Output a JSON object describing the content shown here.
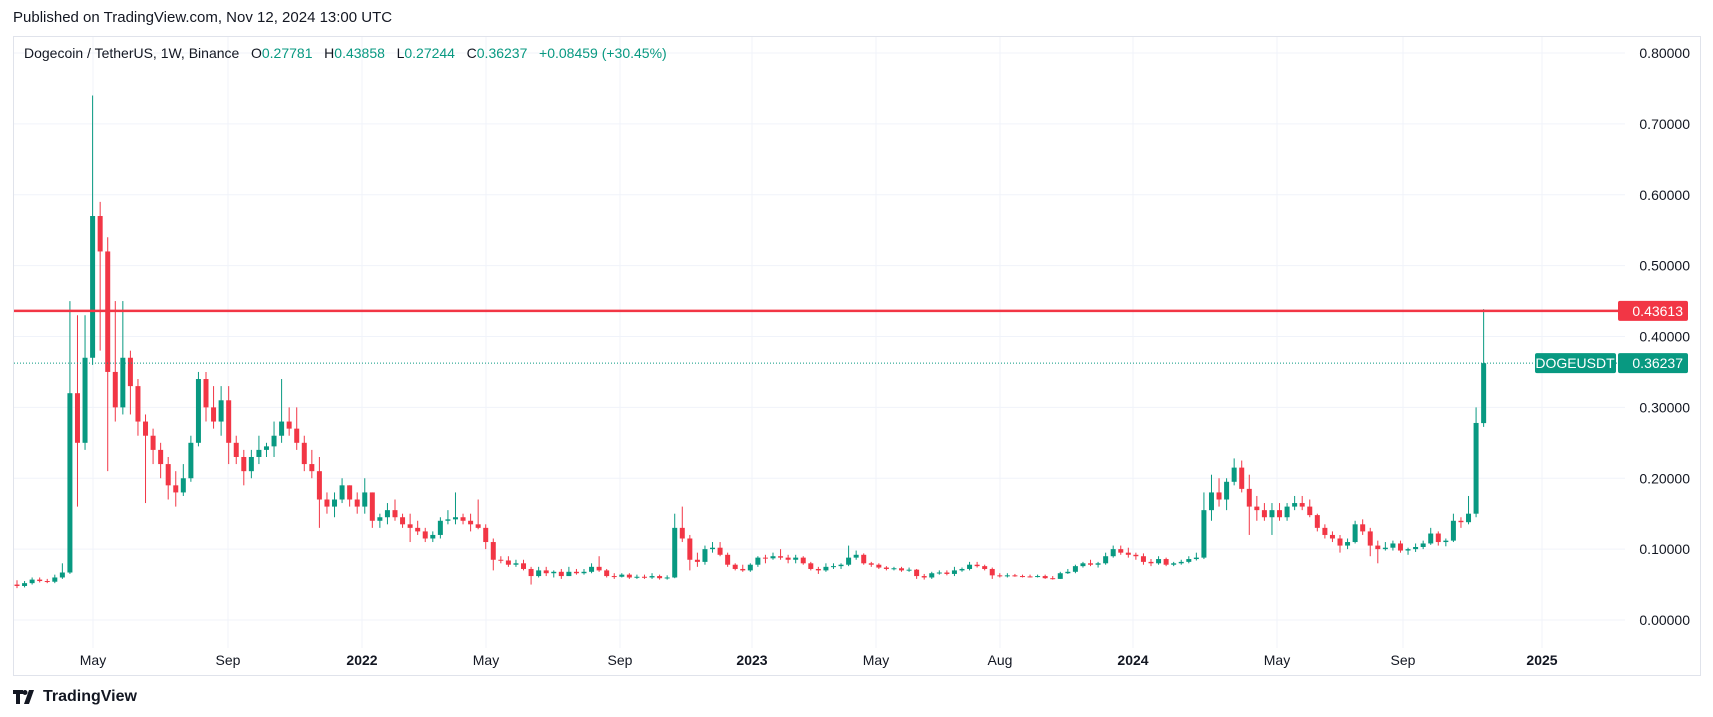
{
  "header": {
    "published": "Published on TradingView.com, Nov 12, 2024 13:00 UTC"
  },
  "legend": {
    "symbol": "Dogecoin / TetherUS, 1W, Binance",
    "o_label": "O",
    "o": "0.27781",
    "h_label": "H",
    "h": "0.43858",
    "l_label": "L",
    "l": "0.27244",
    "c_label": "C",
    "c": "0.36237",
    "change": "+0.08459 (+30.45%)"
  },
  "footer": {
    "brand": "TradingView",
    "logo_icon": "tradingview-logo-icon"
  },
  "colors": {
    "up": "#089981",
    "down": "#f23645",
    "level": "#f23645",
    "grid": "#f0f3fa"
  },
  "chart_data": {
    "type": "candlestick",
    "symbol": "DOGEUSDT",
    "interval": "1W",
    "ylim": [
      0,
      0.8
    ],
    "y_ticks": [
      "0.00000",
      "0.10000",
      "0.20000",
      "0.30000",
      "0.40000",
      "0.50000",
      "0.60000",
      "0.70000",
      "0.80000"
    ],
    "x_ticks": [
      "May",
      "Sep",
      "2022",
      "May",
      "Sep",
      "2023",
      "May",
      "Aug",
      "2024",
      "May",
      "Sep",
      "2025"
    ],
    "grid": true,
    "horizontal_line": {
      "value": 0.43613,
      "label": "0.43613"
    },
    "last_price": {
      "value": 0.36237,
      "label": "0.36237",
      "name": "DOGEUSDT"
    },
    "candles": [
      [
        0.05,
        0.056,
        0.045,
        0.048
      ],
      [
        0.048,
        0.055,
        0.046,
        0.052
      ],
      [
        0.052,
        0.06,
        0.05,
        0.057
      ],
      [
        0.057,
        0.06,
        0.053,
        0.055
      ],
      [
        0.055,
        0.058,
        0.052,
        0.054
      ],
      [
        0.054,
        0.064,
        0.052,
        0.06
      ],
      [
        0.06,
        0.08,
        0.058,
        0.067
      ],
      [
        0.067,
        0.45,
        0.065,
        0.32
      ],
      [
        0.32,
        0.43,
        0.16,
        0.25
      ],
      [
        0.25,
        0.43,
        0.24,
        0.37
      ],
      [
        0.37,
        0.74,
        0.36,
        0.57
      ],
      [
        0.57,
        0.59,
        0.38,
        0.52
      ],
      [
        0.52,
        0.54,
        0.21,
        0.35
      ],
      [
        0.35,
        0.45,
        0.28,
        0.3
      ],
      [
        0.3,
        0.45,
        0.29,
        0.37
      ],
      [
        0.37,
        0.38,
        0.29,
        0.33
      ],
      [
        0.33,
        0.34,
        0.26,
        0.28
      ],
      [
        0.28,
        0.29,
        0.165,
        0.26
      ],
      [
        0.26,
        0.27,
        0.22,
        0.24
      ],
      [
        0.24,
        0.25,
        0.2,
        0.22
      ],
      [
        0.22,
        0.23,
        0.17,
        0.19
      ],
      [
        0.19,
        0.21,
        0.16,
        0.18
      ],
      [
        0.18,
        0.22,
        0.175,
        0.2
      ],
      [
        0.2,
        0.26,
        0.195,
        0.25
      ],
      [
        0.25,
        0.35,
        0.245,
        0.34
      ],
      [
        0.34,
        0.35,
        0.28,
        0.3
      ],
      [
        0.3,
        0.33,
        0.27,
        0.28
      ],
      [
        0.28,
        0.33,
        0.26,
        0.31
      ],
      [
        0.31,
        0.33,
        0.22,
        0.25
      ],
      [
        0.25,
        0.26,
        0.22,
        0.23
      ],
      [
        0.23,
        0.24,
        0.19,
        0.21
      ],
      [
        0.21,
        0.24,
        0.2,
        0.23
      ],
      [
        0.23,
        0.26,
        0.22,
        0.24
      ],
      [
        0.24,
        0.25,
        0.23,
        0.245
      ],
      [
        0.245,
        0.28,
        0.23,
        0.26
      ],
      [
        0.26,
        0.34,
        0.25,
        0.28
      ],
      [
        0.28,
        0.3,
        0.26,
        0.27
      ],
      [
        0.27,
        0.3,
        0.24,
        0.25
      ],
      [
        0.25,
        0.26,
        0.21,
        0.22
      ],
      [
        0.22,
        0.24,
        0.2,
        0.21
      ],
      [
        0.21,
        0.23,
        0.13,
        0.17
      ],
      [
        0.17,
        0.18,
        0.15,
        0.16
      ],
      [
        0.16,
        0.18,
        0.145,
        0.17
      ],
      [
        0.17,
        0.2,
        0.165,
        0.19
      ],
      [
        0.19,
        0.19,
        0.16,
        0.17
      ],
      [
        0.17,
        0.18,
        0.15,
        0.16
      ],
      [
        0.16,
        0.2,
        0.15,
        0.18
      ],
      [
        0.18,
        0.18,
        0.13,
        0.14
      ],
      [
        0.14,
        0.15,
        0.13,
        0.145
      ],
      [
        0.145,
        0.165,
        0.135,
        0.155
      ],
      [
        0.155,
        0.17,
        0.14,
        0.145
      ],
      [
        0.145,
        0.15,
        0.13,
        0.135
      ],
      [
        0.135,
        0.15,
        0.11,
        0.13
      ],
      [
        0.13,
        0.14,
        0.12,
        0.125
      ],
      [
        0.125,
        0.13,
        0.11,
        0.115
      ],
      [
        0.115,
        0.125,
        0.11,
        0.12
      ],
      [
        0.12,
        0.145,
        0.115,
        0.14
      ],
      [
        0.14,
        0.155,
        0.135,
        0.142
      ],
      [
        0.142,
        0.18,
        0.135,
        0.145
      ],
      [
        0.145,
        0.15,
        0.135,
        0.14
      ],
      [
        0.14,
        0.15,
        0.125,
        0.135
      ],
      [
        0.135,
        0.17,
        0.128,
        0.13
      ],
      [
        0.13,
        0.135,
        0.1,
        0.11
      ],
      [
        0.11,
        0.115,
        0.07,
        0.085
      ],
      [
        0.085,
        0.09,
        0.08,
        0.084
      ],
      [
        0.084,
        0.09,
        0.075,
        0.078
      ],
      [
        0.078,
        0.085,
        0.075,
        0.08
      ],
      [
        0.08,
        0.085,
        0.07,
        0.072
      ],
      [
        0.072,
        0.075,
        0.05,
        0.062
      ],
      [
        0.062,
        0.075,
        0.06,
        0.07
      ],
      [
        0.07,
        0.075,
        0.062,
        0.066
      ],
      [
        0.066,
        0.07,
        0.06,
        0.068
      ],
      [
        0.068,
        0.072,
        0.058,
        0.062
      ],
      [
        0.062,
        0.075,
        0.062,
        0.068
      ],
      [
        0.068,
        0.072,
        0.064,
        0.066
      ],
      [
        0.066,
        0.072,
        0.064,
        0.068
      ],
      [
        0.068,
        0.08,
        0.066,
        0.075
      ],
      [
        0.075,
        0.09,
        0.068,
        0.07
      ],
      [
        0.07,
        0.072,
        0.06,
        0.062
      ],
      [
        0.062,
        0.066,
        0.058,
        0.061
      ],
      [
        0.061,
        0.066,
        0.06,
        0.064
      ],
      [
        0.064,
        0.066,
        0.058,
        0.06
      ],
      [
        0.06,
        0.064,
        0.058,
        0.061
      ],
      [
        0.061,
        0.064,
        0.058,
        0.06
      ],
      [
        0.06,
        0.066,
        0.058,
        0.062
      ],
      [
        0.062,
        0.064,
        0.057,
        0.059
      ],
      [
        0.059,
        0.063,
        0.057,
        0.06
      ],
      [
        0.06,
        0.15,
        0.059,
        0.13
      ],
      [
        0.13,
        0.16,
        0.11,
        0.115
      ],
      [
        0.115,
        0.12,
        0.07,
        0.085
      ],
      [
        0.085,
        0.095,
        0.075,
        0.082
      ],
      [
        0.082,
        0.105,
        0.078,
        0.1
      ],
      [
        0.1,
        0.11,
        0.095,
        0.102
      ],
      [
        0.102,
        0.11,
        0.09,
        0.092
      ],
      [
        0.092,
        0.095,
        0.075,
        0.078
      ],
      [
        0.078,
        0.08,
        0.07,
        0.072
      ],
      [
        0.072,
        0.078,
        0.068,
        0.07
      ],
      [
        0.07,
        0.08,
        0.068,
        0.078
      ],
      [
        0.078,
        0.09,
        0.075,
        0.088
      ],
      [
        0.088,
        0.092,
        0.08,
        0.087
      ],
      [
        0.087,
        0.095,
        0.085,
        0.09
      ],
      [
        0.09,
        0.1,
        0.085,
        0.088
      ],
      [
        0.088,
        0.092,
        0.08,
        0.085
      ],
      [
        0.085,
        0.092,
        0.08,
        0.088
      ],
      [
        0.088,
        0.09,
        0.078,
        0.08
      ],
      [
        0.08,
        0.082,
        0.07,
        0.072
      ],
      [
        0.072,
        0.075,
        0.065,
        0.07
      ],
      [
        0.07,
        0.08,
        0.068,
        0.075
      ],
      [
        0.075,
        0.08,
        0.072,
        0.076
      ],
      [
        0.076,
        0.08,
        0.072,
        0.078
      ],
      [
        0.078,
        0.105,
        0.076,
        0.088
      ],
      [
        0.088,
        0.098,
        0.085,
        0.092
      ],
      [
        0.092,
        0.094,
        0.078,
        0.08
      ],
      [
        0.08,
        0.082,
        0.075,
        0.078
      ],
      [
        0.078,
        0.08,
        0.072,
        0.074
      ],
      [
        0.074,
        0.076,
        0.07,
        0.072
      ],
      [
        0.072,
        0.075,
        0.07,
        0.073
      ],
      [
        0.073,
        0.075,
        0.068,
        0.07
      ],
      [
        0.07,
        0.074,
        0.068,
        0.071
      ],
      [
        0.071,
        0.072,
        0.058,
        0.062
      ],
      [
        0.062,
        0.065,
        0.057,
        0.06
      ],
      [
        0.06,
        0.068,
        0.058,
        0.066
      ],
      [
        0.066,
        0.07,
        0.064,
        0.067
      ],
      [
        0.067,
        0.07,
        0.063,
        0.065
      ],
      [
        0.065,
        0.075,
        0.062,
        0.07
      ],
      [
        0.07,
        0.074,
        0.068,
        0.072
      ],
      [
        0.072,
        0.082,
        0.07,
        0.078
      ],
      [
        0.078,
        0.082,
        0.074,
        0.076
      ],
      [
        0.076,
        0.078,
        0.07,
        0.072
      ],
      [
        0.072,
        0.074,
        0.058,
        0.063
      ],
      [
        0.063,
        0.066,
        0.06,
        0.062
      ],
      [
        0.062,
        0.066,
        0.06,
        0.063
      ],
      [
        0.063,
        0.065,
        0.061,
        0.062
      ],
      [
        0.062,
        0.064,
        0.06,
        0.0615
      ],
      [
        0.0615,
        0.064,
        0.06,
        0.061
      ],
      [
        0.061,
        0.064,
        0.06,
        0.062
      ],
      [
        0.062,
        0.064,
        0.058,
        0.059
      ],
      [
        0.059,
        0.062,
        0.057,
        0.058
      ],
      [
        0.058,
        0.068,
        0.058,
        0.066
      ],
      [
        0.066,
        0.072,
        0.065,
        0.068
      ],
      [
        0.068,
        0.078,
        0.066,
        0.076
      ],
      [
        0.076,
        0.082,
        0.074,
        0.08
      ],
      [
        0.08,
        0.085,
        0.076,
        0.078
      ],
      [
        0.078,
        0.082,
        0.074,
        0.08
      ],
      [
        0.08,
        0.095,
        0.078,
        0.09
      ],
      [
        0.09,
        0.105,
        0.088,
        0.1
      ],
      [
        0.1,
        0.105,
        0.092,
        0.095
      ],
      [
        0.095,
        0.102,
        0.088,
        0.092
      ],
      [
        0.092,
        0.095,
        0.085,
        0.09
      ],
      [
        0.09,
        0.094,
        0.078,
        0.082
      ],
      [
        0.082,
        0.086,
        0.076,
        0.08
      ],
      [
        0.08,
        0.09,
        0.078,
        0.086
      ],
      [
        0.086,
        0.088,
        0.076,
        0.078
      ],
      [
        0.078,
        0.082,
        0.076,
        0.08
      ],
      [
        0.08,
        0.085,
        0.078,
        0.082
      ],
      [
        0.082,
        0.09,
        0.08,
        0.086
      ],
      [
        0.086,
        0.095,
        0.084,
        0.088
      ],
      [
        0.088,
        0.18,
        0.086,
        0.155
      ],
      [
        0.155,
        0.205,
        0.14,
        0.18
      ],
      [
        0.18,
        0.2,
        0.16,
        0.17
      ],
      [
        0.17,
        0.2,
        0.155,
        0.195
      ],
      [
        0.195,
        0.228,
        0.19,
        0.215
      ],
      [
        0.215,
        0.225,
        0.18,
        0.185
      ],
      [
        0.185,
        0.205,
        0.12,
        0.16
      ],
      [
        0.16,
        0.175,
        0.14,
        0.155
      ],
      [
        0.155,
        0.165,
        0.14,
        0.145
      ],
      [
        0.145,
        0.165,
        0.12,
        0.155
      ],
      [
        0.155,
        0.165,
        0.14,
        0.145
      ],
      [
        0.145,
        0.165,
        0.14,
        0.16
      ],
      [
        0.16,
        0.175,
        0.155,
        0.165
      ],
      [
        0.165,
        0.175,
        0.155,
        0.16
      ],
      [
        0.16,
        0.17,
        0.145,
        0.148
      ],
      [
        0.148,
        0.15,
        0.125,
        0.13
      ],
      [
        0.13,
        0.135,
        0.115,
        0.12
      ],
      [
        0.12,
        0.125,
        0.11,
        0.115
      ],
      [
        0.115,
        0.12,
        0.095,
        0.105
      ],
      [
        0.105,
        0.115,
        0.1,
        0.11
      ],
      [
        0.11,
        0.14,
        0.108,
        0.135
      ],
      [
        0.135,
        0.142,
        0.12,
        0.125
      ],
      [
        0.125,
        0.13,
        0.09,
        0.105
      ],
      [
        0.105,
        0.112,
        0.08,
        0.1
      ],
      [
        0.1,
        0.11,
        0.098,
        0.102
      ],
      [
        0.102,
        0.112,
        0.098,
        0.108
      ],
      [
        0.108,
        0.112,
        0.095,
        0.098
      ],
      [
        0.098,
        0.102,
        0.092,
        0.1
      ],
      [
        0.1,
        0.108,
        0.096,
        0.103
      ],
      [
        0.103,
        0.112,
        0.1,
        0.108
      ],
      [
        0.108,
        0.13,
        0.106,
        0.122
      ],
      [
        0.122,
        0.125,
        0.105,
        0.11
      ],
      [
        0.11,
        0.115,
        0.104,
        0.112
      ],
      [
        0.112,
        0.15,
        0.11,
        0.14
      ],
      [
        0.14,
        0.145,
        0.13,
        0.138
      ],
      [
        0.138,
        0.175,
        0.135,
        0.15
      ],
      [
        0.15,
        0.3,
        0.145,
        0.278
      ],
      [
        0.27781,
        0.43858,
        0.27244,
        0.36237
      ]
    ]
  }
}
